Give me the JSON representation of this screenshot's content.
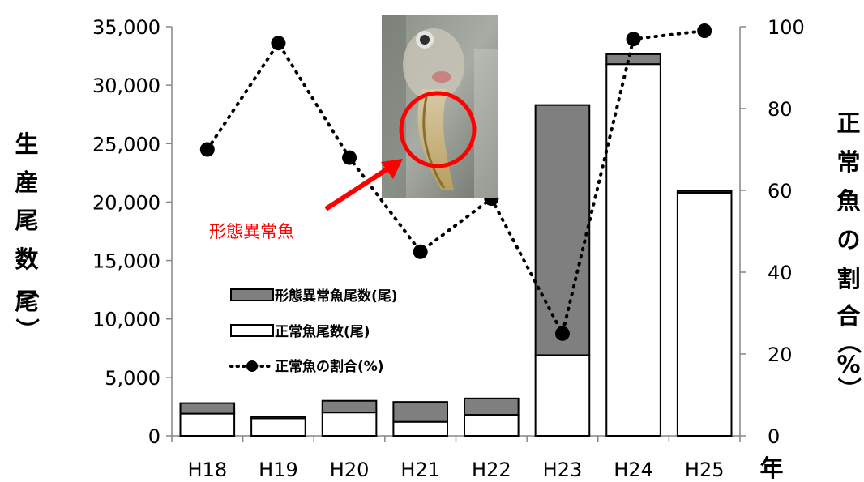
{
  "chart_data": {
    "type": "bar",
    "stacked": true,
    "categories": [
      "H18",
      "H19",
      "H20",
      "H21",
      "H22",
      "H23",
      "H24",
      "H25"
    ],
    "series": [
      {
        "name": "正常魚尾数(尾)",
        "kind": "bar",
        "axis": "left",
        "color": "#ffffff",
        "values": [
          1900,
          1500,
          2000,
          1200,
          1800,
          6900,
          31800,
          20800
        ]
      },
      {
        "name": "形態異常魚尾数(尾)",
        "kind": "bar",
        "axis": "left",
        "color": "#7f7f7f",
        "values": [
          900,
          150,
          1000,
          1700,
          1400,
          21400,
          850,
          150
        ]
      },
      {
        "name": "正常魚の割合(%)",
        "kind": "line",
        "axis": "right",
        "color": "#000000",
        "line_style": "dotted",
        "values": [
          70,
          96,
          68,
          45,
          58,
          25,
          97,
          99
        ]
      }
    ],
    "xlabel": "年",
    "ylabel_left": [
      "生",
      "産",
      "尾",
      "数",
      "（",
      "尾",
      "）"
    ],
    "ylabel_right": [
      "正",
      "常",
      "魚",
      "の",
      "割",
      "合",
      "（",
      "%",
      "）"
    ],
    "ylim_left": [
      0,
      35000
    ],
    "yticks_left": [
      "0",
      "5,000",
      "10,000",
      "15,000",
      "20,000",
      "25,000",
      "30,000",
      "35,000"
    ],
    "ylim_right": [
      0,
      100
    ],
    "yticks_right": [
      "0",
      "20",
      "40",
      "60",
      "80",
      "100"
    ],
    "legend_placement": "center-left",
    "grid": false,
    "annotation": {
      "text": "形態異常魚",
      "color": "#ff0000",
      "inset_image": "photo of a larval fish with abnormal spine circled in red"
    }
  }
}
